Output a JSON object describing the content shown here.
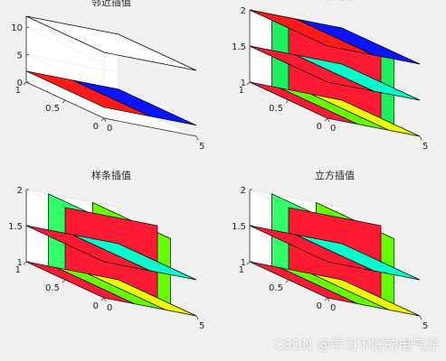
{
  "chart_data": [
    {
      "type": "slice3d",
      "title": "邻近插值",
      "x_ticks": [
        "0",
        "5"
      ],
      "y_ticks": [
        "0",
        "0.5",
        "1"
      ],
      "z_ticks": [
        "0",
        "5",
        "10"
      ],
      "xlim": [
        0,
        5
      ],
      "ylim": [
        0,
        1
      ],
      "zlim": [
        0,
        12
      ],
      "slices": [
        {
          "orient": "xy",
          "at": 12,
          "span": [
            0,
            5,
            0,
            1
          ],
          "colors": [
            "#ffffff"
          ]
        },
        {
          "orient": "xy",
          "at": 2,
          "span": [
            0,
            5,
            0,
            1
          ],
          "colors": [
            "#ff1a1a",
            "#0a14ff"
          ]
        }
      ]
    },
    {
      "type": "slice3d",
      "title": "双线性插值",
      "x_ticks": [
        "0",
        "5"
      ],
      "y_ticks": [
        "0",
        "0.5",
        "1"
      ],
      "z_ticks": [
        "1",
        "1.5",
        "2"
      ],
      "xlim": [
        0,
        5
      ],
      "ylim": [
        0,
        1
      ],
      "zlim": [
        1,
        2
      ],
      "slices": [
        {
          "orient": "yz",
          "at": 1.2,
          "colors": [
            "#1af060"
          ]
        },
        {
          "orient": "yz",
          "at": 3.6,
          "colors": [
            "#1af060"
          ]
        },
        {
          "orient": "xz",
          "at": 0.5,
          "colors": [
            "#ff1a33"
          ]
        },
        {
          "orient": "xy",
          "at": 1.0,
          "colors": [
            "#ff1a33",
            "#66ff00",
            "#eeff00"
          ]
        },
        {
          "orient": "xy",
          "at": 1.5,
          "colors": [
            "#ff1a33",
            "#00ffcc"
          ]
        },
        {
          "orient": "xy",
          "at": 2.0,
          "colors": [
            "#ff1a1a",
            "#0a14ff"
          ]
        }
      ]
    },
    {
      "type": "slice3d",
      "title": "样条插值",
      "x_ticks": [
        "0",
        "5"
      ],
      "y_ticks": [
        "0",
        "0.5",
        "1"
      ],
      "z_ticks": [
        "1",
        "1.5",
        "2"
      ],
      "xlim": [
        0,
        5
      ],
      "ylim": [
        0,
        1
      ],
      "zlim": [
        1,
        2
      ],
      "slices": [
        {
          "orient": "yz",
          "at": 1.2,
          "colors": [
            "#33ff66"
          ]
        },
        {
          "orient": "yz",
          "at": 3.6,
          "colors": [
            "#66ff00"
          ]
        },
        {
          "orient": "xz",
          "at": 0.5,
          "colors": [
            "#ff1a33"
          ]
        },
        {
          "orient": "xy",
          "at": 1.0,
          "colors": [
            "#ff1a33",
            "#66ff00",
            "#eeff00"
          ]
        },
        {
          "orient": "xy",
          "at": 1.5,
          "colors": [
            "#ff1a33",
            "#00ffcc"
          ]
        }
      ]
    },
    {
      "type": "slice3d",
      "title": "立方插值",
      "x_ticks": [
        "0",
        "5"
      ],
      "y_ticks": [
        "0",
        "0.5",
        "1"
      ],
      "z_ticks": [
        "1",
        "1.5",
        "2"
      ],
      "xlim": [
        0,
        5
      ],
      "ylim": [
        0,
        1
      ],
      "zlim": [
        1,
        2
      ],
      "slices": [
        {
          "orient": "yz",
          "at": 1.2,
          "colors": [
            "#33ff66"
          ]
        },
        {
          "orient": "yz",
          "at": 3.6,
          "colors": [
            "#66ff00"
          ]
        },
        {
          "orient": "xz",
          "at": 0.5,
          "colors": [
            "#ff1a33"
          ]
        },
        {
          "orient": "xy",
          "at": 1.0,
          "colors": [
            "#ff1a33",
            "#66ff00",
            "#eeff00"
          ]
        },
        {
          "orient": "xy",
          "at": 1.5,
          "colors": [
            "#ff1a33",
            "#00ffcc"
          ]
        }
      ]
    }
  ],
  "watermark": "CSDN @学习不好的电气仔"
}
